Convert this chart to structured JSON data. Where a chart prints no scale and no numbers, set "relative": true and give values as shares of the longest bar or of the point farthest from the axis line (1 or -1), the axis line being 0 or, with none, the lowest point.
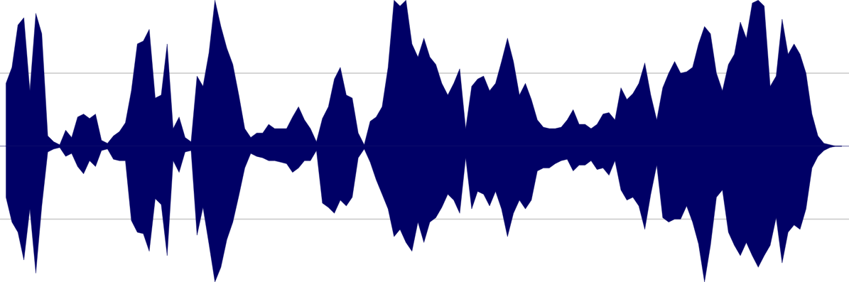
{
  "chart_data": {
    "type": "area",
    "relative": true,
    "categories": [
      null,
      null,
      null,
      null,
      null,
      null,
      null,
      null,
      null,
      null,
      null,
      null,
      null,
      null,
      null,
      null,
      null,
      null,
      null,
      null,
      null,
      null,
      null,
      null,
      null,
      null,
      null,
      null,
      null,
      null,
      null,
      null,
      null,
      null,
      null,
      null,
      null,
      null,
      null,
      null,
      null,
      null,
      null,
      null,
      null,
      null,
      null,
      null,
      null,
      null,
      null,
      null,
      null,
      null,
      null,
      null,
      null,
      null,
      null,
      null,
      null,
      null,
      null,
      null,
      null,
      null,
      null,
      null,
      null,
      null,
      null,
      null,
      null,
      null,
      null,
      null,
      null,
      null,
      null,
      null,
      null,
      null,
      null,
      null,
      null,
      null,
      null,
      null,
      null,
      null,
      null,
      null,
      null,
      null,
      null,
      null,
      null,
      null,
      null,
      null,
      null,
      null,
      null,
      null,
      null,
      null,
      null,
      null,
      null,
      null,
      null,
      null,
      null,
      null,
      null,
      null,
      null,
      null,
      null,
      null,
      null,
      null,
      null,
      null,
      null,
      null,
      null,
      null,
      null,
      null,
      null,
      null,
      null,
      null,
      null,
      null,
      null,
      null,
      null,
      null,
      null
    ],
    "series": [
      {
        "color": "#000066",
        "values": [
          0.43,
          0.54,
          0.83,
          0.88,
          0.38,
          0.91,
          0.77,
          0.07,
          0.03,
          0.01,
          0.11,
          0.06,
          0.2,
          0.22,
          0.19,
          0.22,
          0.04,
          0.02,
          0.07,
          0.1,
          0.16,
          0.38,
          0.7,
          0.72,
          0.8,
          0.33,
          0.35,
          0.7,
          0.12,
          0.2,
          0.06,
          0.03,
          0.48,
          0.41,
          0.64,
          1.0,
          0.82,
          0.67,
          0.56,
          0.35,
          0.12,
          0.06,
          0.09,
          0.09,
          0.15,
          0.12,
          0.12,
          0.12,
          0.2,
          0.27,
          0.18,
          0.12,
          0.03,
          0.19,
          0.27,
          0.46,
          0.54,
          0.35,
          0.33,
          0.09,
          0.01,
          0.17,
          0.2,
          0.27,
          0.54,
          1.0,
          0.96,
          1.0,
          0.7,
          0.61,
          0.74,
          0.61,
          0.56,
          0.43,
          0.35,
          0.43,
          0.53,
          0.12,
          0.41,
          0.46,
          0.48,
          0.38,
          0.43,
          0.58,
          0.74,
          0.58,
          0.35,
          0.43,
          0.32,
          0.18,
          0.13,
          0.12,
          0.12,
          0.13,
          0.18,
          0.25,
          0.15,
          0.15,
          0.12,
          0.15,
          0.22,
          0.23,
          0.18,
          0.4,
          0.32,
          0.36,
          0.43,
          0.57,
          0.35,
          0.18,
          0.4,
          0.5,
          0.58,
          0.5,
          0.51,
          0.54,
          0.7,
          0.82,
          0.77,
          0.5,
          0.38,
          0.56,
          0.63,
          0.85,
          0.74,
          0.98,
          1.0,
          0.96,
          0.41,
          0.48,
          0.87,
          0.63,
          0.7,
          0.63,
          0.5,
          0.22,
          0.07,
          0.02,
          0.01,
          0.0,
          0.0
        ]
      },
      {
        "color": "#000066",
        "values": [
          -0.35,
          -0.52,
          -0.59,
          -0.78,
          -0.43,
          -0.87,
          -0.41,
          -0.04,
          -0.02,
          -0.01,
          -0.07,
          -0.05,
          -0.14,
          -0.19,
          -0.1,
          -0.14,
          -0.03,
          -0.02,
          -0.09,
          -0.1,
          -0.1,
          -0.51,
          -0.59,
          -0.6,
          -0.72,
          -0.36,
          -0.4,
          -0.75,
          -0.1,
          -0.18,
          -0.04,
          -0.03,
          -0.61,
          -0.42,
          -0.67,
          -0.93,
          -0.83,
          -0.64,
          -0.52,
          -0.34,
          -0.15,
          -0.05,
          -0.07,
          -0.08,
          -0.1,
          -0.1,
          -0.11,
          -0.12,
          -0.18,
          -0.15,
          -0.1,
          -0.1,
          -0.03,
          -0.39,
          -0.42,
          -0.46,
          -0.37,
          -0.41,
          -0.35,
          -0.08,
          -0.02,
          -0.11,
          -0.23,
          -0.33,
          -0.43,
          -0.62,
          -0.57,
          -0.66,
          -0.72,
          -0.52,
          -0.66,
          -0.52,
          -0.49,
          -0.42,
          -0.33,
          -0.37,
          -0.46,
          -0.08,
          -0.43,
          -0.31,
          -0.33,
          -0.41,
          -0.31,
          -0.43,
          -0.62,
          -0.46,
          -0.37,
          -0.43,
          -0.37,
          -0.17,
          -0.15,
          -0.15,
          -0.12,
          -0.1,
          -0.09,
          -0.17,
          -0.13,
          -0.13,
          -0.1,
          -0.16,
          -0.15,
          -0.2,
          -0.1,
          -0.3,
          -0.37,
          -0.35,
          -0.41,
          -0.57,
          -0.33,
          -0.13,
          -0.49,
          -0.52,
          -0.5,
          -0.5,
          -0.41,
          -0.52,
          -0.67,
          -0.93,
          -0.68,
          -0.35,
          -0.3,
          -0.59,
          -0.68,
          -0.75,
          -0.66,
          -0.75,
          -0.83,
          -0.75,
          -0.68,
          -0.49,
          -0.8,
          -0.59,
          -0.54,
          -0.57,
          -0.43,
          -0.15,
          -0.07,
          -0.03,
          -0.01,
          0.0,
          0.0
        ]
      }
    ],
    "ref_lines": [
      {
        "axis": "y",
        "value": 0.5,
        "color": "#c8c8c8"
      },
      {
        "axis": "y",
        "value": -0.5,
        "color": "#c8c8c8"
      },
      {
        "axis": "y",
        "value": 0,
        "color": "#000066"
      }
    ]
  }
}
